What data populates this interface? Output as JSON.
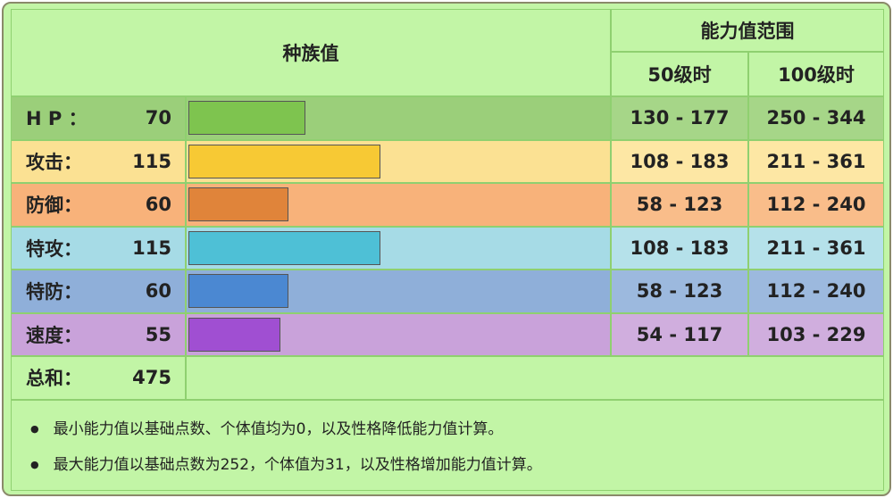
{
  "header": {
    "title": "种族值",
    "range_title": "能力值范围",
    "col_50": "50级时",
    "col_100": "100级时"
  },
  "rows": [
    {
      "label": "H P ：",
      "value": 70,
      "lv50": "130 - 177",
      "lv100": "250 - 344"
    },
    {
      "label": "攻击：",
      "value": 115,
      "lv50": "108 - 183",
      "lv100": "211 - 361"
    },
    {
      "label": "防御：",
      "value": 60,
      "lv50": "58 - 123",
      "lv100": "112 - 240"
    },
    {
      "label": "特攻：",
      "value": 115,
      "lv50": "108 - 183",
      "lv100": "211 - 361"
    },
    {
      "label": "特防：",
      "value": 60,
      "lv50": "58 - 123",
      "lv100": "112 - 240"
    },
    {
      "label": "速度：",
      "value": 55,
      "lv50": "54 - 117",
      "lv100": "103 - 229"
    }
  ],
  "total": {
    "label": "总和：",
    "value": 475
  },
  "notes": [
    "最小能力值以基础点数、个体值均为0，以及性格降低能力值计算。",
    "最大能力值以基础点数为252，个体值为31，以及性格增加能力值计算。"
  ]
}
